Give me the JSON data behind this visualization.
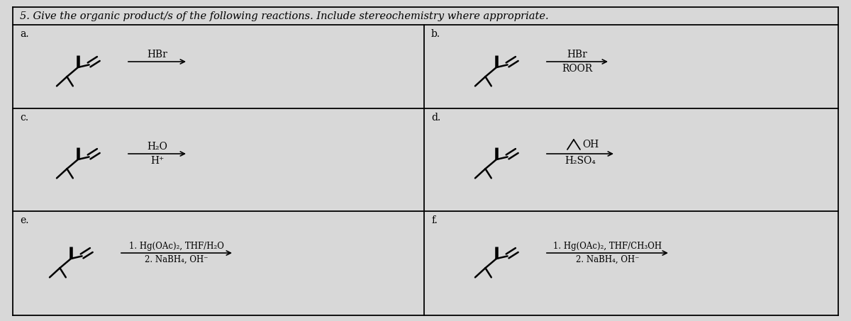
{
  "title": "5. Give the organic product/s of the following reactions. Include stereochemistry where appropriate.",
  "bg_color": "#d8d8d8",
  "border_color": "#000000",
  "text_color": "#000000",
  "fig_width": 12.0,
  "fig_height": 4.53,
  "sections": {
    "a": {
      "label": "a.",
      "r1": "HBr",
      "r2": ""
    },
    "b": {
      "label": "b.",
      "r1": "HBr",
      "r2": "ROOR"
    },
    "c": {
      "label": "c.",
      "r1": "H₂O",
      "r2": "H⁺"
    },
    "d": {
      "label": "d.",
      "r1_epoxide": true,
      "r2": "H₂SO₄"
    },
    "e": {
      "label": "e.",
      "r1": "1. Hg(OAc)₂, THF/H₂O",
      "r2": "2. NaBH₄, OH⁻"
    },
    "f": {
      "label": "f.",
      "r1": "1. Hg(OAc)₂, THF/CH₃OH",
      "r2": "2. NaBH₄, OH⁻"
    }
  }
}
